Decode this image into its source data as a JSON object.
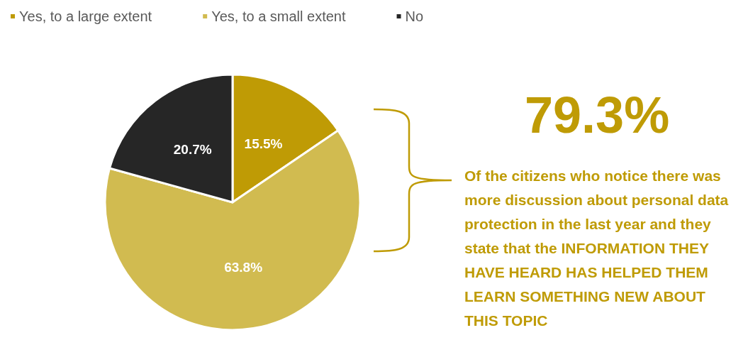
{
  "chart_data": {
    "type": "pie",
    "categories": [
      "Yes, to a large extent",
      "Yes, to a small extent",
      "No"
    ],
    "values": [
      15.5,
      63.8,
      20.7
    ],
    "colors": [
      "#bf9b05",
      "#d1bb50",
      "#262626"
    ],
    "value_labels": [
      "15.5%",
      "63.8%",
      "20.7%"
    ],
    "legend": "top left",
    "annotations": [
      "79.3%",
      "Of the citizens who notice there was more discussion about personal data protection in the last year and they state that the INFORMATION THEY HAVE HEARD HAS HELPED THEM LEARN SOMETHING NEW ABOUT THIS TOPIC"
    ]
  }
}
